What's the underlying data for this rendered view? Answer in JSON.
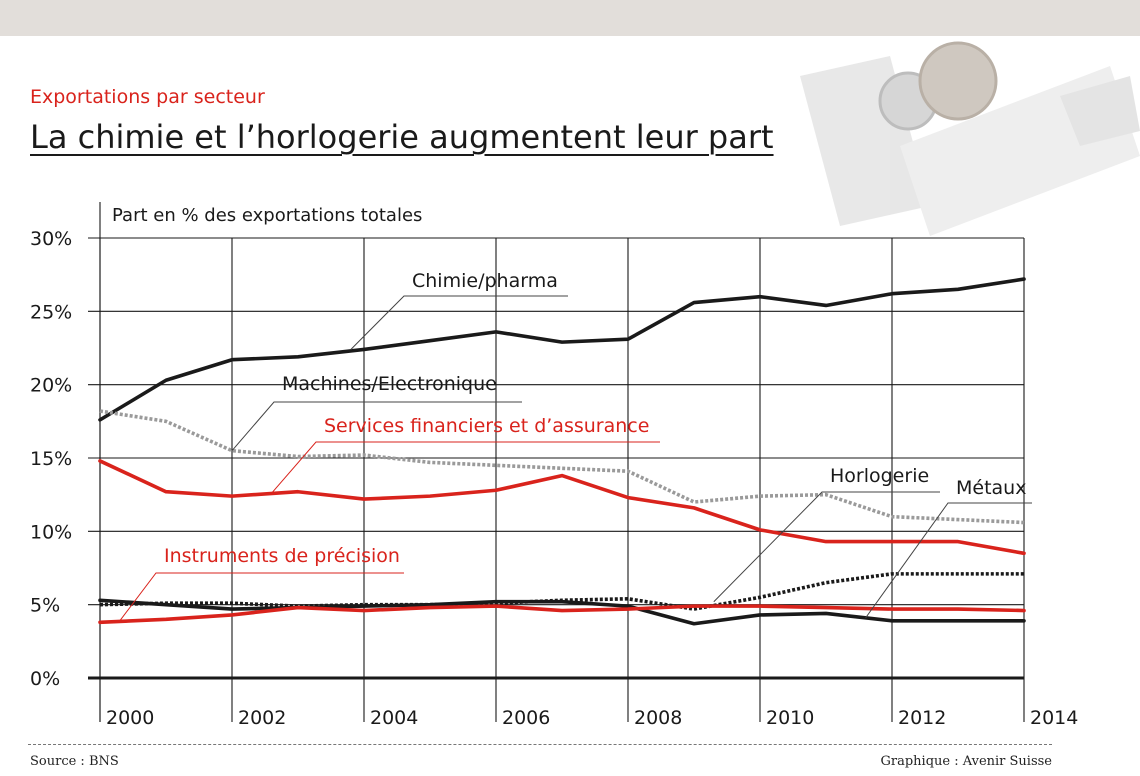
{
  "header": {
    "subtitle": "Exportations par secteur",
    "title": "La chimie et l’horlogerie augmentent leur part"
  },
  "footer": {
    "source": "Source : BNS",
    "credit": "Graphique : Avenir Suisse"
  },
  "colors": {
    "black": "#1a1a1a",
    "red": "#d9231c",
    "grey": "#9a9a9a",
    "dark_dotted": "#1a1a1a"
  },
  "chart_data": {
    "type": "line",
    "ylabel": "Part en % des exportations totales",
    "ylim": [
      0,
      30
    ],
    "xlim": [
      2000,
      2014
    ],
    "y_ticks": [
      {
        "value": 0,
        "label": "0%"
      },
      {
        "value": 5,
        "label": "5%"
      },
      {
        "value": 10,
        "label": "10%"
      },
      {
        "value": 15,
        "label": "15%"
      },
      {
        "value": 20,
        "label": "20%"
      },
      {
        "value": 25,
        "label": "25%"
      },
      {
        "value": 30,
        "label": "30%"
      }
    ],
    "x_ticks": [
      2000,
      2002,
      2004,
      2006,
      2008,
      2010,
      2012,
      2014
    ],
    "x": [
      2000,
      2001,
      2002,
      2003,
      2004,
      2005,
      2006,
      2007,
      2008,
      2009,
      2010,
      2011,
      2012,
      2013,
      2014
    ],
    "grid": true,
    "series": [
      {
        "name": "Chimie/pharma",
        "color": "black",
        "style": "solid",
        "values": [
          17.6,
          20.3,
          21.7,
          21.9,
          22.4,
          23.0,
          23.6,
          22.9,
          23.1,
          25.6,
          26.0,
          25.4,
          26.2,
          26.5,
          27.2
        ],
        "label_anchor": [
          2003.8,
          22.4
        ]
      },
      {
        "name": "Machines/Electronique",
        "color": "grey",
        "style": "dotted",
        "values": [
          18.2,
          17.5,
          15.5,
          15.1,
          15.2,
          14.7,
          14.5,
          14.3,
          14.1,
          12.0,
          12.4,
          12.5,
          11.0,
          10.8,
          10.6
        ],
        "label_anchor": [
          2002.0,
          15.5
        ]
      },
      {
        "name": "Services financiers et d’assurance",
        "color": "red",
        "style": "solid",
        "values": [
          14.8,
          12.7,
          12.4,
          12.7,
          12.2,
          12.4,
          12.8,
          13.8,
          12.3,
          11.6,
          10.1,
          9.3,
          9.3,
          9.3,
          8.5
        ],
        "label_anchor": [
          2002.6,
          12.6
        ]
      },
      {
        "name": "Horlogerie",
        "color": "dark_dotted",
        "style": "dotted",
        "values": [
          5.0,
          5.1,
          5.1,
          4.9,
          5.0,
          5.0,
          5.1,
          5.3,
          5.4,
          4.7,
          5.5,
          6.5,
          7.1,
          7.1,
          7.1
        ],
        "label_anchor": [
          2009.3,
          5.2
        ]
      },
      {
        "name": "Métaux",
        "color": "black",
        "style": "solid",
        "values": [
          5.3,
          5.0,
          4.7,
          4.8,
          4.9,
          5.0,
          5.2,
          5.2,
          4.9,
          3.7,
          4.3,
          4.4,
          3.9,
          3.9,
          3.9
        ],
        "label_anchor": [
          2011.6,
          4.1
        ]
      },
      {
        "name": "Instruments de précision",
        "color": "red",
        "style": "solid",
        "values": [
          3.8,
          4.0,
          4.3,
          4.8,
          4.6,
          4.8,
          4.9,
          4.6,
          4.7,
          4.9,
          4.9,
          4.8,
          4.7,
          4.7,
          4.6
        ],
        "label_anchor": [
          2000.3,
          3.9
        ]
      }
    ]
  }
}
